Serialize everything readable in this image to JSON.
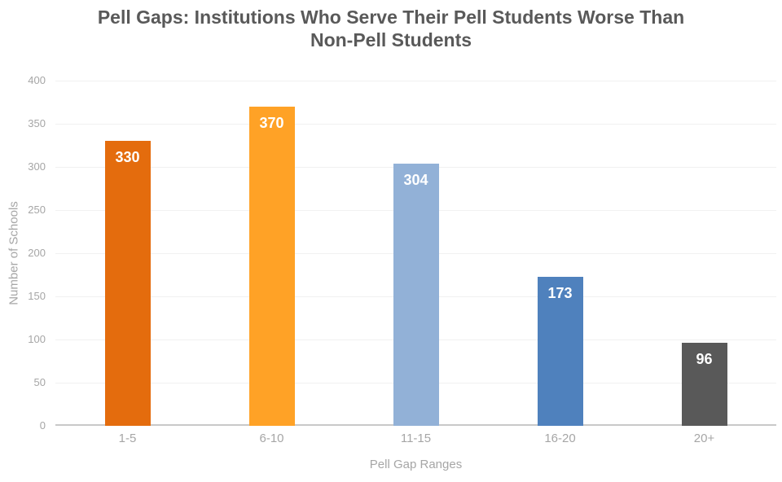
{
  "chart_data": {
    "type": "bar",
    "title": "Pell Gaps: Institutions Who Serve Their Pell Students Worse Than Non-Pell Students",
    "categories": [
      "1-5",
      "6-10",
      "11-15",
      "16-20",
      "20+"
    ],
    "values": [
      330,
      370,
      304,
      173,
      96
    ],
    "bar_colors": [
      "#E46C0D",
      "#FFA226",
      "#92B1D7",
      "#4F81BD",
      "#595959"
    ],
    "value_label_color": "#FFFFFF",
    "xlabel": "Pell Gap Ranges",
    "ylabel": "Number of Schools",
    "ylim": [
      0,
      400
    ],
    "yticks": [
      0,
      50,
      100,
      150,
      200,
      250,
      300,
      350,
      400
    ],
    "grid": true,
    "legend_position": "none",
    "title_color": "#595959",
    "axis_text_color": "#A6A6A6",
    "gridline_color": "#F1F1F1",
    "baseline_color": "#C9C9C9"
  }
}
